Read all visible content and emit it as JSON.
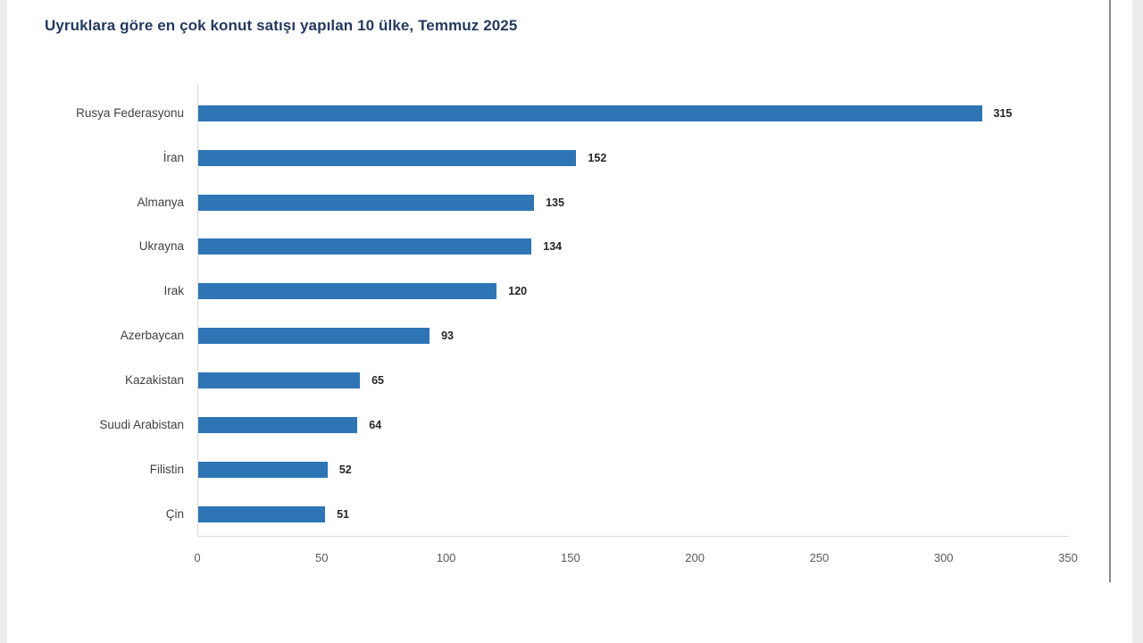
{
  "page": {
    "background_color": "#ececec",
    "canvas_color": "#ffffff"
  },
  "chart_data": {
    "type": "bar",
    "orientation": "horizontal",
    "title": "Uyruklara göre en çok konut satışı yapılan 10 ülke, Temmuz 2025",
    "categories": [
      "Rusya Federasyonu",
      "İran",
      "Almanya",
      "Ukrayna",
      "Irak",
      "Azerbaycan",
      "Kazakistan",
      "Suudi Arabistan",
      "Filistin",
      "Çin"
    ],
    "values": [
      315,
      152,
      135,
      134,
      120,
      93,
      65,
      64,
      52,
      51
    ],
    "data_labels": [
      "315",
      "152",
      "135",
      "134",
      "120",
      "93",
      "65",
      "64",
      "52",
      "51"
    ],
    "xlabel": "",
    "ylabel": "",
    "xlim": [
      0,
      350
    ],
    "xticks": [
      0,
      50,
      100,
      150,
      200,
      250,
      300,
      350
    ],
    "xtick_labels": [
      "0",
      "50",
      "100",
      "150",
      "200",
      "250",
      "300",
      "350"
    ],
    "grid": false,
    "legend": false
  },
  "colors": {
    "bar": "#2e75b6",
    "title_text": "#24395e",
    "category_text": "#404040",
    "value_text": "#262626",
    "tick_text": "#595959",
    "axis_line": "#d9d9d9",
    "divider_line": "#888888"
  }
}
